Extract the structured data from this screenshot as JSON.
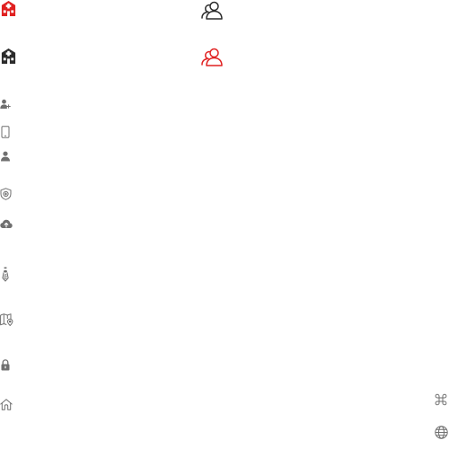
{
  "colors": {
    "accent_red": "#E02020",
    "icon_dark": "#2b2b2b",
    "icon_gray": "#6f6f6f",
    "background": "#ffffff"
  },
  "icons": [
    {
      "name": "hospital-icon",
      "variant": "active",
      "color": "accent_red"
    },
    {
      "name": "hospital-icon",
      "variant": "default",
      "color": "icon_dark"
    },
    {
      "name": "people-icon",
      "variant": "default",
      "color": "icon_dark"
    },
    {
      "name": "people-icon",
      "variant": "active",
      "color": "accent_red"
    },
    {
      "name": "user-add-icon",
      "color": "icon_gray"
    },
    {
      "name": "phone-icon",
      "color": "icon_gray"
    },
    {
      "name": "user-icon",
      "color": "icon_gray"
    },
    {
      "name": "shield-plus-icon",
      "color": "icon_gray"
    },
    {
      "name": "cloud-upload-icon",
      "color": "icon_gray"
    },
    {
      "name": "tie-icon",
      "color": "icon_gray"
    },
    {
      "name": "map-pin-icon",
      "color": "icon_gray"
    },
    {
      "name": "lock-icon",
      "color": "icon_gray"
    },
    {
      "name": "home-icon",
      "color": "icon_gray"
    },
    {
      "name": "command-icon",
      "color": "icon_gray"
    },
    {
      "name": "globe-icon",
      "color": "icon_gray"
    }
  ]
}
